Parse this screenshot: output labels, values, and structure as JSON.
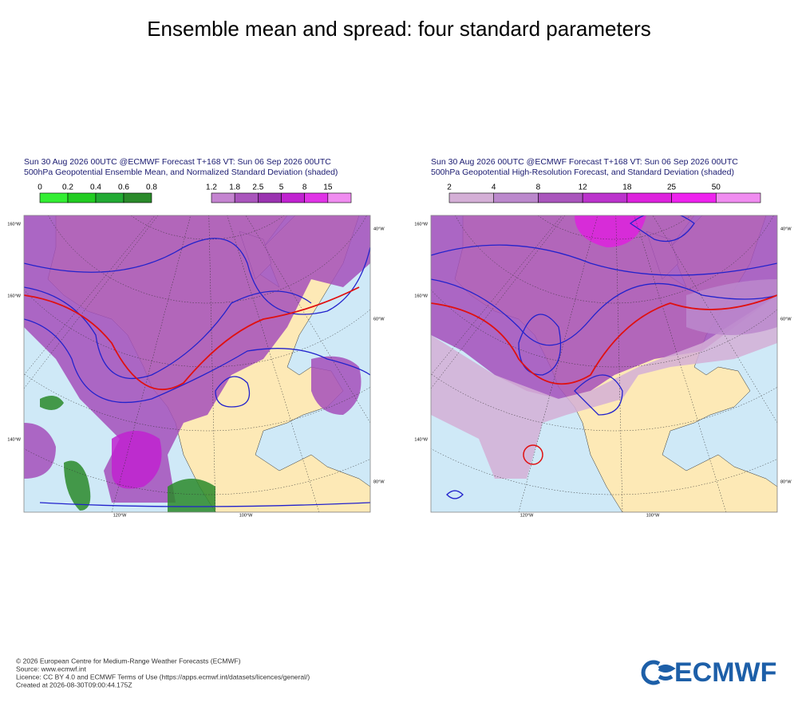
{
  "title": "Ensemble mean and spread: four standard parameters",
  "panels": [
    {
      "header": [
        "Sun 30 Aug 2026 00UTC @ECMWF Forecast T+168 VT: Sun 06 Sep 2026 00UTC",
        "500hPa Geopotential Ensemble Mean, and Normalized Standard Deviation (shaded)"
      ],
      "legends": [
        {
          "labels": [
            "0",
            "0.2",
            "0.4",
            "0.6",
            "0.8"
          ],
          "colors": [
            "#33ee33",
            "#22cc22",
            "#22aa33",
            "#2a8a2a"
          ]
        },
        {
          "labels": [
            "1.2",
            "1.8",
            "2.5",
            "5",
            "8",
            "15"
          ],
          "colors": [
            "#c484d0",
            "#a955bc",
            "#9a33b0",
            "#c022d0",
            "#e033e6",
            "#f08cf0"
          ]
        }
      ],
      "left_labels": [
        "160°W",
        "160°W",
        "140°W"
      ],
      "right_labels": [
        "40°W",
        "60°W",
        "80°W"
      ],
      "bottom_labels": [
        "120°W",
        "100°W"
      ]
    },
    {
      "header": [
        "Sun 30 Aug 2026 00UTC @ECMWF Forecast T+168 VT: Sun 06 Sep 2026 00UTC",
        "500hPa Geopotential High-Resolution Forecast, and Standard Deviation (shaded)"
      ],
      "legends": [
        {
          "labels": [
            "2",
            "4",
            "8",
            "12",
            "18",
            "25",
            "50"
          ],
          "colors": [
            "#d4afd6",
            "#bb88cc",
            "#a955bc",
            "#bb33cc",
            "#dd22dd",
            "#ee22ee",
            "#f08cf0"
          ]
        }
      ],
      "left_labels": [
        "160°W",
        "160°W",
        "140°W"
      ],
      "right_labels": [
        "40°W",
        "60°W",
        "80°W"
      ],
      "bottom_labels": [
        "120°W",
        "100°W"
      ]
    }
  ],
  "footer": [
    "© 2026 European Centre for Medium-Range Weather Forecasts (ECMWF)",
    "Source: www.ecmwf.int",
    "Licence: CC BY 4.0 and ECMWF Terms of Use (https://apps.ecmwf.int/datasets/licences/general/)",
    "Created at 2026-08-30T09:00:44.175Z"
  ],
  "logo": "ECMWF"
}
